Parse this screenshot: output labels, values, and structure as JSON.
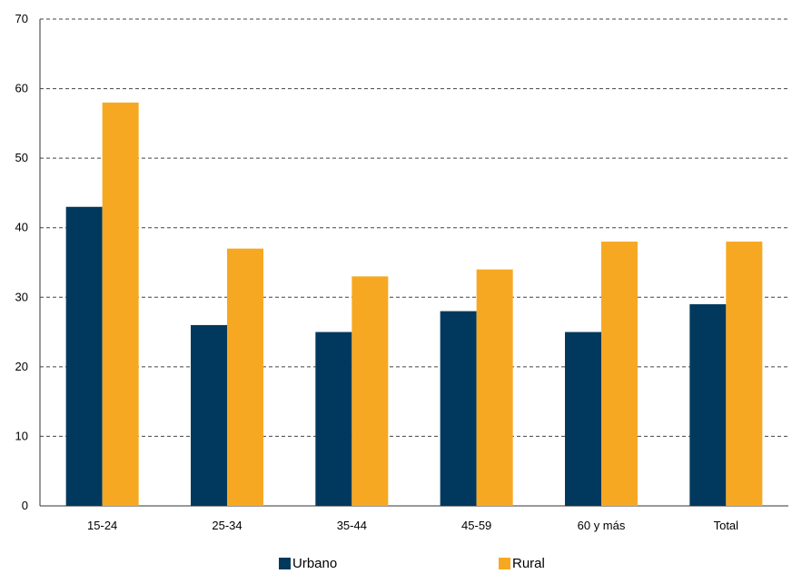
{
  "chart_data": {
    "type": "bar",
    "categories": [
      "15-24",
      "25-34",
      "35-44",
      "45-59",
      "60 y más",
      "Total"
    ],
    "series": [
      {
        "name": "Urbano",
        "color": "#00395d",
        "values": [
          43,
          26,
          25,
          28,
          25,
          29
        ]
      },
      {
        "name": "Rural",
        "color": "#f7a823",
        "values": [
          58,
          37,
          33,
          34,
          38,
          38
        ]
      }
    ],
    "ylim": [
      0,
      70
    ],
    "yticks": [
      0,
      10,
      20,
      30,
      40,
      50,
      60,
      70
    ],
    "grid": true,
    "legend_position": "bottom"
  }
}
